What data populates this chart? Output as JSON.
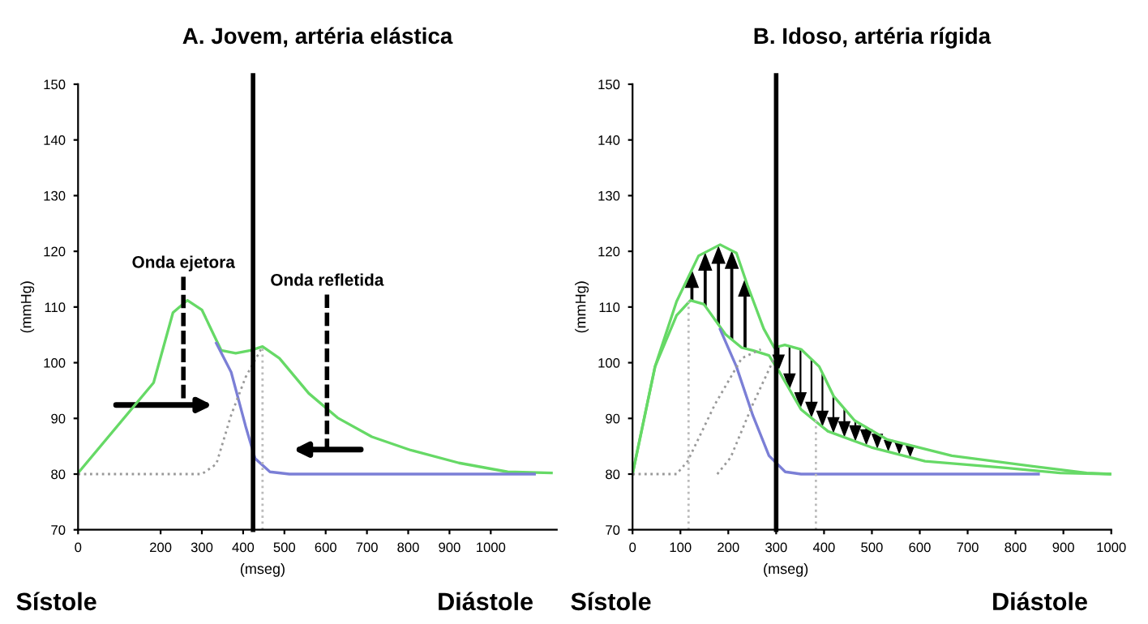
{
  "chart_data": [
    {
      "type": "line",
      "title": "A. Jovem, artéria elástica",
      "ylabel": "(mmHg)",
      "xlabel": "(mseg)",
      "xlim": [
        0,
        1160
      ],
      "xticks": [
        0,
        200,
        300,
        400,
        500,
        600,
        700,
        800,
        900,
        1000
      ],
      "ylim": [
        70,
        150
      ],
      "yticks": [
        70,
        80,
        90,
        100,
        110,
        120,
        130,
        140,
        150
      ],
      "ref_lines": [
        {
          "axis": "x",
          "value": 424,
          "color": "#000000"
        }
      ],
      "annotations": [
        "Onda ejetora",
        "Onda refletida",
        "Sístole",
        "Diástole"
      ],
      "series": [
        {
          "color": "#66d966",
          "line_style": "solid",
          "x": [
            0,
            183,
            230,
            265,
            300,
            347,
            382,
            418,
            447,
            488,
            559,
            629,
            712,
            806,
            923,
            1041,
            1147
          ],
          "values": [
            80.2,
            96.4,
            109,
            111.2,
            109.5,
            102.2,
            101.7,
            102.2,
            102.9,
            100.8,
            94.5,
            90.1,
            86.7,
            84.3,
            82,
            80.4,
            80.2
          ]
        },
        {
          "color": "#7b7fd6",
          "line_style": "solid",
          "x": [
            335,
            371,
            406,
            429,
            465,
            512,
            1106
          ],
          "values": [
            103.5,
            98.3,
            88.6,
            82.8,
            80.4,
            80,
            80
          ]
        },
        {
          "color": "#999999",
          "line_style": "dotted",
          "x": [
            0,
            300,
            335,
            371,
            406,
            447
          ],
          "values": [
            80,
            80,
            81.8,
            90.6,
            97.4,
            102.9
          ]
        },
        {
          "color": "#bbbbbb",
          "line_style": "dotted",
          "x": [
            447,
            447
          ],
          "values": [
            70,
            102.9
          ]
        }
      ]
    },
    {
      "type": "line",
      "title": "B. Idoso, artéria rígida",
      "ylabel": "(mmHg)",
      "xlabel": "(mseg)",
      "xlim": [
        0,
        1000
      ],
      "xticks": [
        0,
        100,
        200,
        300,
        400,
        500,
        600,
        700,
        800,
        900,
        1000
      ],
      "ylim": [
        70,
        150
      ],
      "yticks": [
        70,
        80,
        90,
        100,
        110,
        120,
        130,
        140,
        150
      ],
      "ref_lines": [
        {
          "axis": "x",
          "value": 300,
          "color": "#000000"
        }
      ],
      "annotations": [
        "Sístole",
        "Diástole"
      ],
      "series": [
        {
          "color": "#66d966",
          "line_style": "solid",
          "x": [
            0,
            47,
            92,
            121,
            149,
            194,
            228,
            251,
            285,
            307,
            352,
            408,
            499,
            611,
            780,
            893,
            1000
          ],
          "values": [
            80.1,
            99.3,
            108.5,
            111.2,
            110.5,
            105.1,
            102.7,
            102.2,
            101.3,
            98.3,
            91.6,
            87.7,
            84.8,
            82.3,
            81.1,
            80.2,
            80
          ]
        },
        {
          "color": "#66d966",
          "line_style": "solid",
          "x": [
            0,
            47,
            92,
            138,
            183,
            217,
            240,
            274,
            296,
            318,
            352,
            390,
            420,
            464,
            532,
            667,
            836,
            949,
            1000
          ],
          "values": [
            80,
            99.3,
            111,
            119.2,
            121.2,
            119.7,
            113.9,
            106.1,
            102.7,
            103.2,
            102.4,
            99.3,
            94,
            89.6,
            86.2,
            83.3,
            81.4,
            80.2,
            80
          ]
        },
        {
          "color": "#7b7fd6",
          "line_style": "solid",
          "x": [
            183,
            217,
            251,
            285,
            319,
            352,
            848
          ],
          "values": [
            106,
            99.3,
            90.6,
            83.3,
            80.4,
            80,
            80
          ]
        },
        {
          "color": "#999999",
          "line_style": "dotted",
          "x": [
            0,
            92,
            115,
            172,
            228,
            268
          ],
          "values": [
            80,
            80,
            82.3,
            92.5,
            100.8,
            102.4
          ]
        },
        {
          "color": "#999999",
          "line_style": "dotted",
          "x": [
            177,
            205,
            251,
            296
          ],
          "values": [
            80,
            83,
            92.5,
            100.8
          ]
        },
        {
          "color": "#bbbbbb",
          "line_style": "dotted",
          "x": [
            117,
            117
          ],
          "values": [
            70,
            111
          ]
        },
        {
          "color": "#bbbbbb",
          "line_style": "dotted",
          "x": [
            383,
            383
          ],
          "values": [
            70,
            90
          ]
        }
      ]
    }
  ]
}
